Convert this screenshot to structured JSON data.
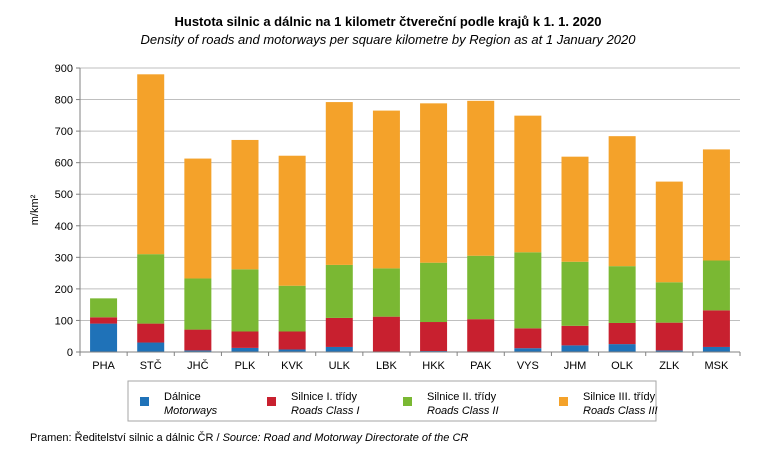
{
  "chart_data": {
    "type": "bar",
    "stacked": true,
    "title": "Hustota silnic a dálnic na 1 kilometr čtvereční podle krajů k 1. 1. 2020",
    "subtitle": "Density of roads and motorways per square kilometre by Region as at 1 January 2020",
    "ylabel": "m/km²",
    "ylim": [
      0,
      900
    ],
    "yticks": [
      0,
      100,
      200,
      300,
      400,
      500,
      600,
      700,
      800,
      900
    ],
    "grid": true,
    "legend_position": "bottom",
    "categories": [
      "PHA",
      "STČ",
      "JHČ",
      "PLK",
      "KVK",
      "ULK",
      "LBK",
      "HKK",
      "PAK",
      "VYS",
      "JHM",
      "OLK",
      "ZLK",
      "MSK"
    ],
    "series": [
      {
        "name": "Dálnice",
        "name_en": "Motorways",
        "color": "#1f72b8",
        "values": [
          90,
          30,
          5,
          13,
          8,
          16,
          0,
          3,
          0,
          12,
          21,
          25,
          5,
          16
        ]
      },
      {
        "name": "Silnice I. třídy",
        "name_en": "Roads Class I",
        "color": "#c8202f",
        "values": [
          20,
          60,
          66,
          52,
          57,
          92,
          112,
          92,
          104,
          63,
          62,
          67,
          88,
          116
        ]
      },
      {
        "name": "Silnice II. třídy",
        "name_en": "Roads Class II",
        "color": "#7ab833",
        "values": [
          60,
          220,
          162,
          197,
          145,
          168,
          153,
          188,
          201,
          241,
          203,
          180,
          128,
          158
        ]
      },
      {
        "name": "Silnice III. třídy",
        "name_en": "Roads Class III",
        "color": "#f4a22a",
        "values": [
          0,
          570,
          380,
          410,
          412,
          516,
          500,
          505,
          491,
          433,
          333,
          412,
          319,
          352
        ]
      }
    ]
  },
  "source": {
    "label_cz": "Pramen: Ředitelství silnic a dálnic ČR / ",
    "label_en": "Source: Road and Motorway Directorate of the CR"
  }
}
